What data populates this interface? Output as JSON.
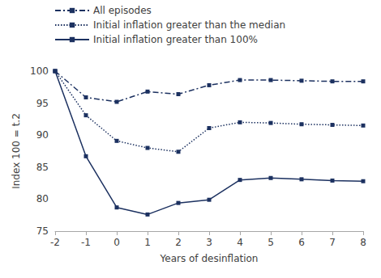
{
  "chart_data": {
    "type": "line",
    "x_label": "Years of desinflation",
    "y_label": "Index 100 = t.2",
    "x": [
      -2,
      -1,
      0,
      1,
      2,
      3,
      4,
      5,
      6,
      7,
      8
    ],
    "xlim": [
      -2,
      8
    ],
    "xticks": [
      -2,
      -1,
      0,
      1,
      2,
      3,
      4,
      5,
      6,
      7,
      8
    ],
    "ylim": [
      75,
      100
    ],
    "yticks": [
      75,
      80,
      85,
      90,
      95,
      100
    ],
    "grid": false,
    "legend": "top-left",
    "series": [
      {
        "name": "All episodes",
        "color": "#1c3160",
        "line_style": "dashdot",
        "marker": "square",
        "values": [
          100,
          95.9,
          95.2,
          96.8,
          96.4,
          97.8,
          98.6,
          98.6,
          98.5,
          98.4,
          98.4
        ]
      },
      {
        "name": "Initial inflation greater than the median",
        "color": "#1c3160",
        "line_style": "dotted",
        "marker": "square",
        "values": [
          100,
          93.1,
          89.1,
          88.0,
          87.4,
          91.1,
          92.0,
          91.9,
          91.7,
          91.6,
          91.5
        ]
      },
      {
        "name": "Initial inflation greater than 100%",
        "color": "#1c3160",
        "line_style": "solid",
        "marker": "square",
        "values": [
          100,
          86.7,
          78.7,
          77.6,
          79.4,
          79.9,
          83.0,
          83.3,
          83.1,
          82.9,
          82.8
        ]
      }
    ]
  }
}
